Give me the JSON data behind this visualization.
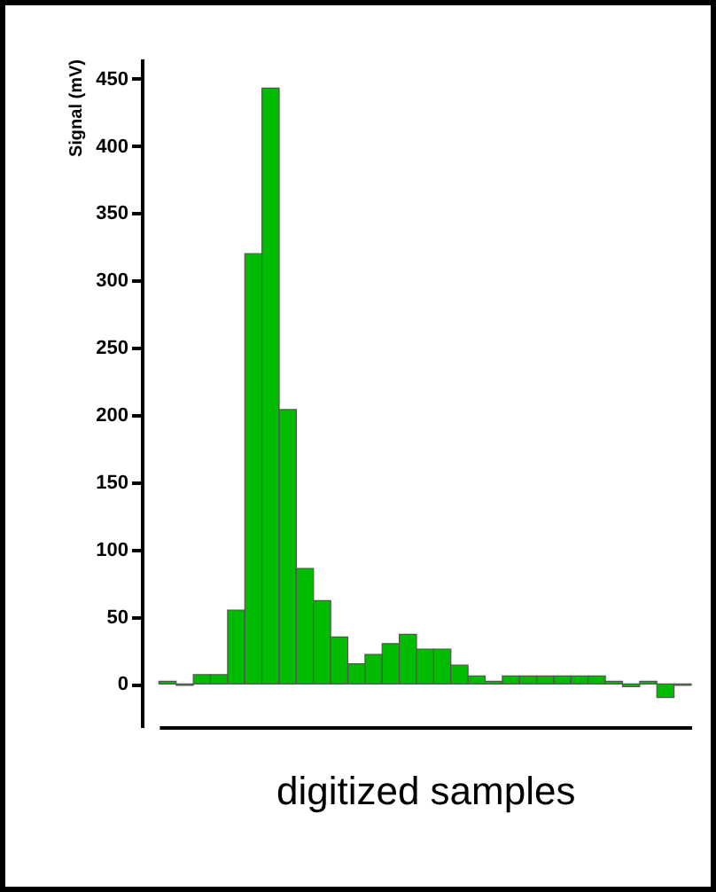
{
  "chart_data": {
    "type": "bar",
    "xlabel": "digitized samples",
    "ylabel": "Signal (mV)",
    "categories": [
      null,
      null,
      null,
      null,
      null,
      null,
      null,
      null,
      null,
      null,
      null,
      null,
      null,
      null,
      null,
      null,
      null,
      null,
      null,
      null,
      null,
      null,
      null,
      null,
      null,
      null,
      null,
      null,
      null,
      null,
      null
    ],
    "values": [
      2,
      -1,
      7,
      7,
      55,
      320,
      443,
      204,
      86,
      62,
      35,
      15,
      22,
      30,
      37,
      26,
      26,
      14,
      6,
      2,
      6,
      6,
      6,
      6,
      6,
      6,
      2,
      -2,
      2,
      -10,
      -1
    ],
    "color": "#00bb00",
    "ylim": [
      -32,
      465
    ],
    "yticks": [
      0,
      50,
      100,
      150,
      200,
      250,
      300,
      350,
      400,
      450
    ],
    "tick_labels": "y",
    "grid": false,
    "legend": false
  }
}
